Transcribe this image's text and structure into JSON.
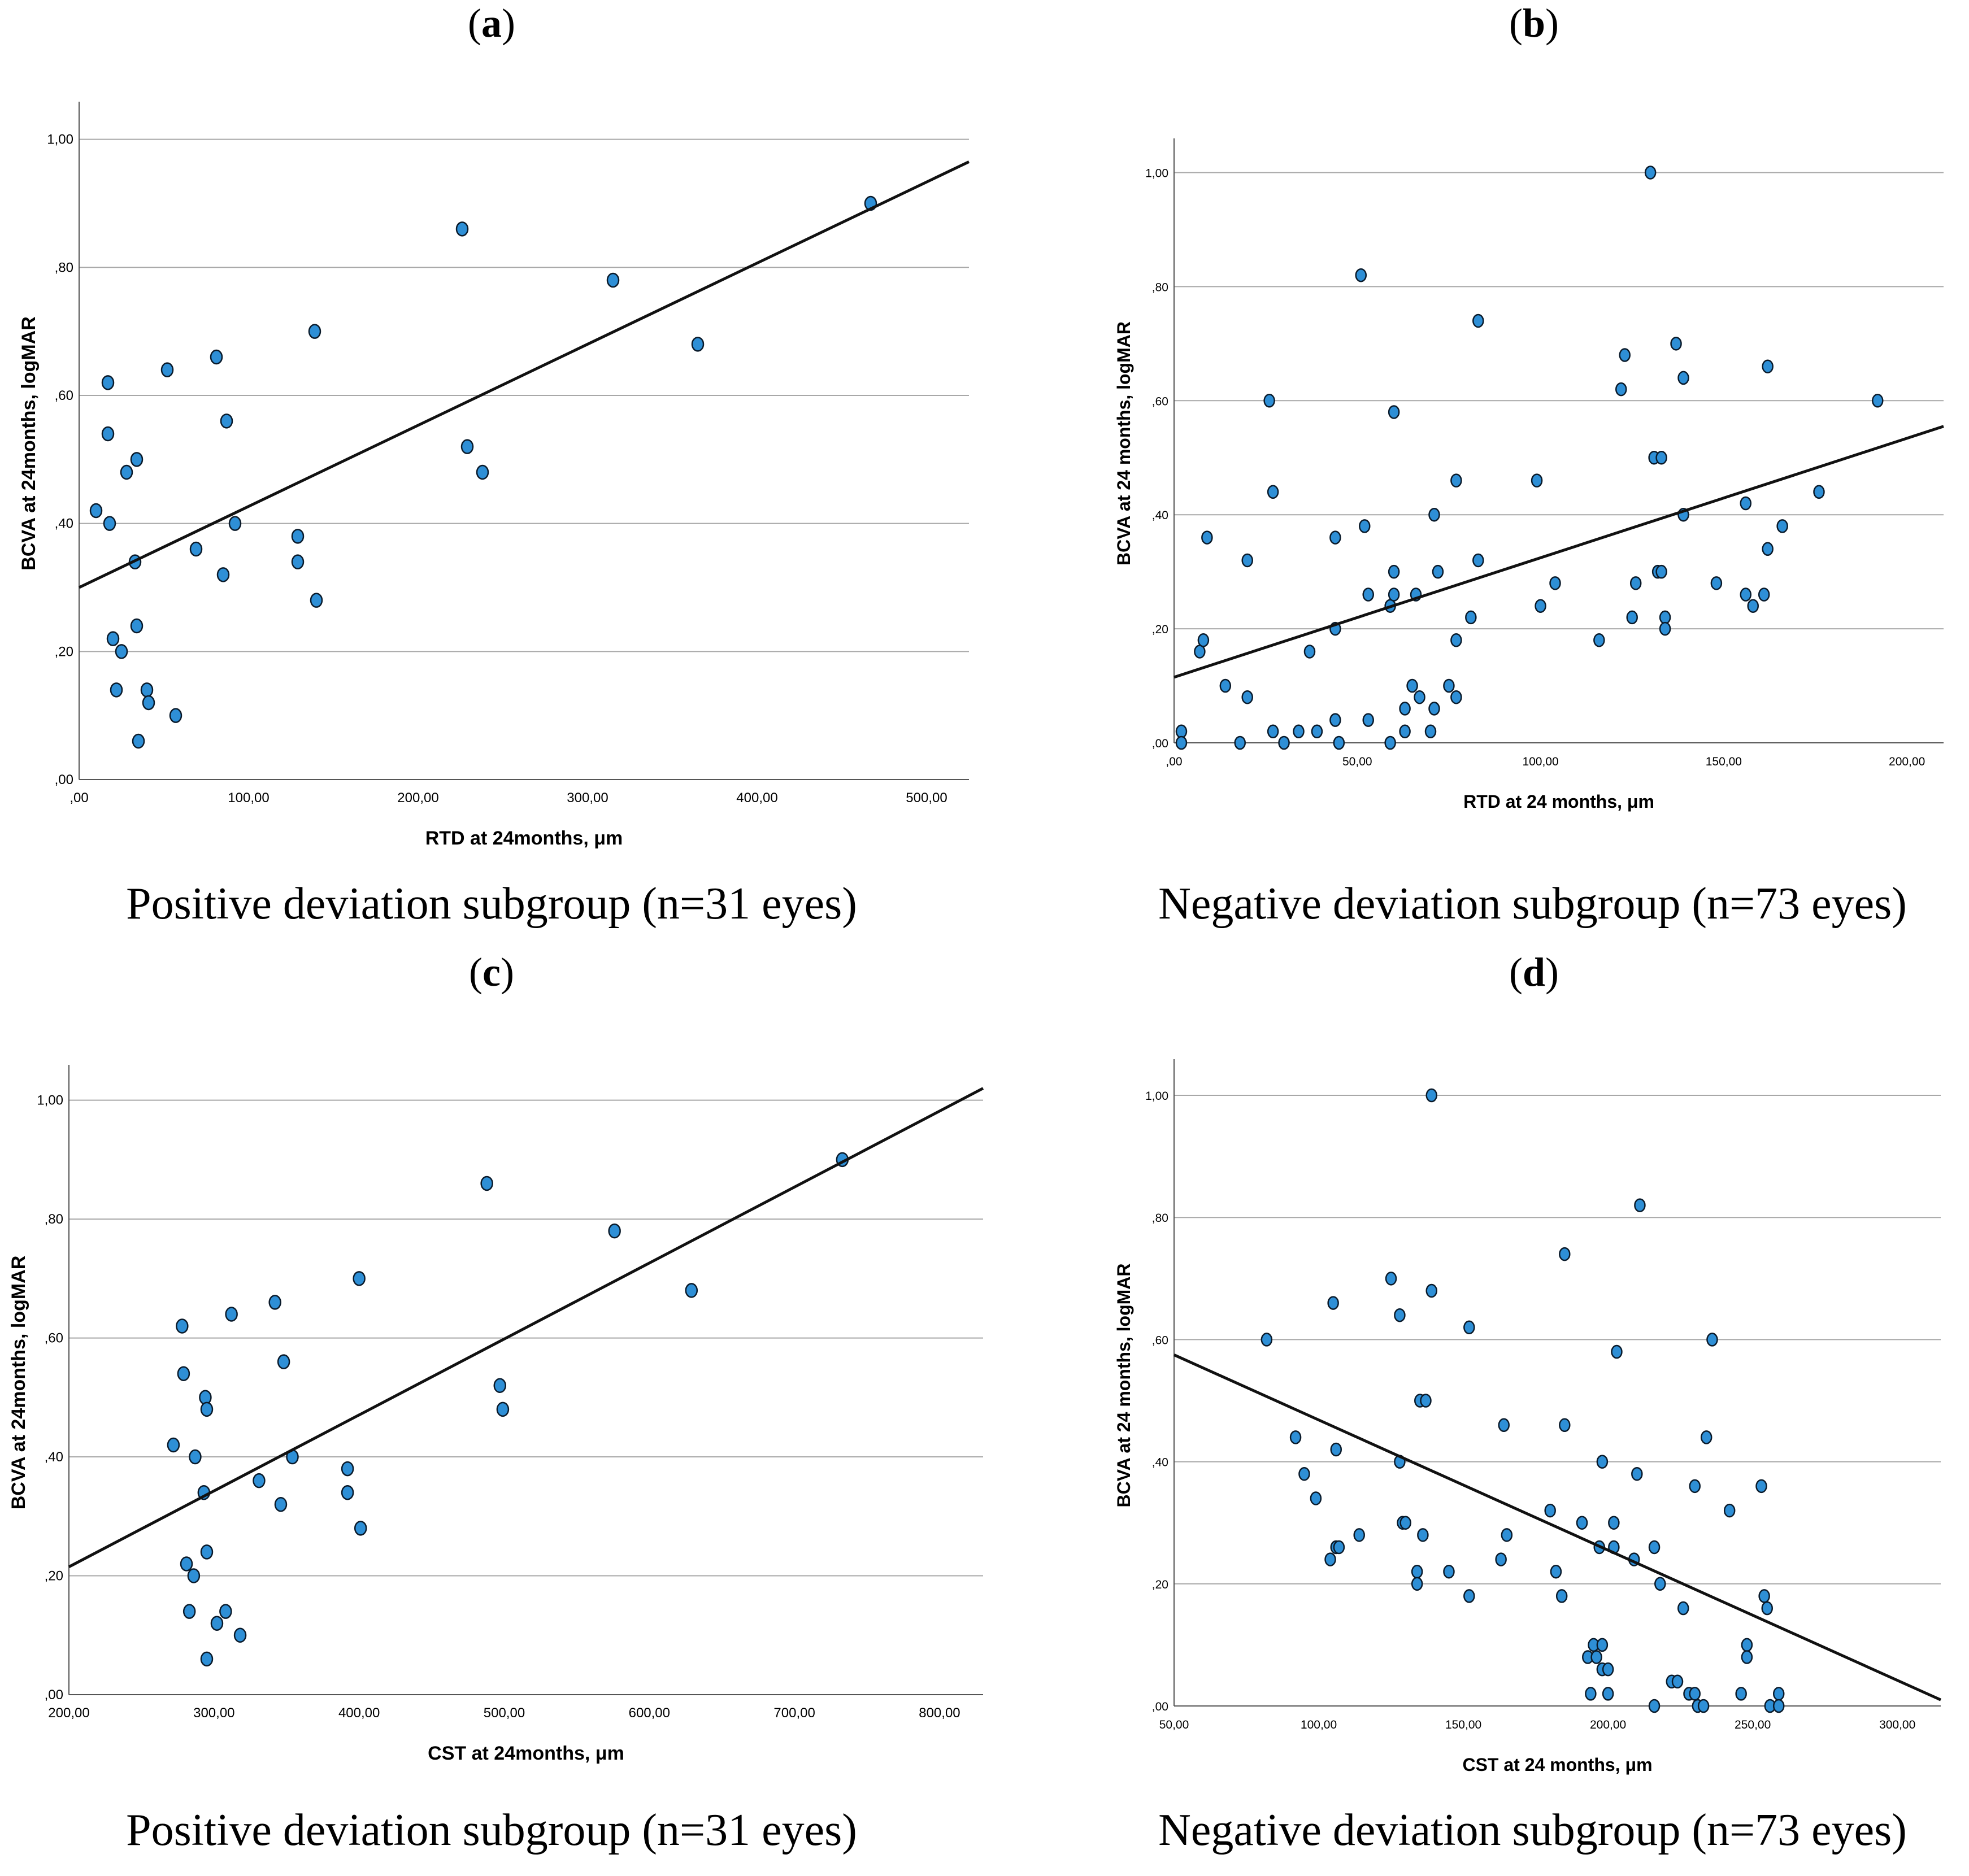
{
  "figure": {
    "colors": {
      "point": "#2e8fd6",
      "point_stroke": "#0a1a2a",
      "grid": "#a8a8a8",
      "line": "#111111",
      "axis": "#555555"
    }
  },
  "chart_data": [
    {
      "panel": "a",
      "type": "scatter",
      "caption": "Positive deviation subgroup (n=31 eyes)",
      "xlabel": "RTD at 24months, μm",
      "ylabel": "BCVA at 24months, logMAR",
      "xlim": [
        0,
        525
      ],
      "ylim": [
        0,
        1.05
      ],
      "xticks": [
        0,
        100,
        200,
        300,
        400,
        500
      ],
      "xtick_labels": [
        ",00",
        "100,00",
        "200,00",
        "300,00",
        "400,00",
        "500,00"
      ],
      "yticks": [
        0,
        0.2,
        0.4,
        0.6,
        0.8,
        1.0
      ],
      "ytick_labels": [
        ",00",
        ",20",
        ",40",
        ",60",
        ",80",
        "1,00"
      ],
      "grid": "horizontal",
      "fit_line": {
        "x": [
          0,
          525
        ],
        "y": [
          0.3,
          0.965
        ]
      },
      "points": [
        [
          10,
          0.42
        ],
        [
          17,
          0.62
        ],
        [
          17,
          0.54
        ],
        [
          18,
          0.4
        ],
        [
          20,
          0.22
        ],
        [
          22,
          0.14
        ],
        [
          25,
          0.2
        ],
        [
          28,
          0.48
        ],
        [
          33,
          0.34
        ],
        [
          34,
          0.5
        ],
        [
          34,
          0.24
        ],
        [
          35,
          0.06
        ],
        [
          40,
          0.14
        ],
        [
          41,
          0.12
        ],
        [
          52,
          0.64
        ],
        [
          57,
          0.1
        ],
        [
          69,
          0.36
        ],
        [
          81,
          0.66
        ],
        [
          85,
          0.32
        ],
        [
          87,
          0.56
        ],
        [
          92,
          0.4
        ],
        [
          129,
          0.38
        ],
        [
          129,
          0.34
        ],
        [
          139,
          0.7
        ],
        [
          140,
          0.28
        ],
        [
          226,
          0.86
        ],
        [
          229,
          0.52
        ],
        [
          238,
          0.48
        ],
        [
          315,
          0.78
        ],
        [
          365,
          0.68
        ],
        [
          467,
          0.9
        ]
      ]
    },
    {
      "panel": "b",
      "type": "scatter",
      "caption": "Negative deviation subgroup (n=73 eyes)",
      "xlabel": "RTD at 24 months, μm",
      "ylabel": "BCVA at 24 months, logMAR",
      "xlim": [
        0,
        210
      ],
      "ylim": [
        0,
        1.05
      ],
      "xticks": [
        0,
        50,
        100,
        150,
        200
      ],
      "xtick_labels": [
        ",00",
        "50,00",
        "100,00",
        "150,00",
        "200,00"
      ],
      "yticks": [
        0,
        0.2,
        0.4,
        0.6,
        0.8,
        1.0
      ],
      "ytick_labels": [
        ",00",
        ",20",
        ",40",
        ",60",
        ",80",
        "1,00"
      ],
      "grid": "horizontal",
      "fit_line": {
        "x": [
          0,
          210
        ],
        "y": [
          0.115,
          0.555
        ]
      },
      "points": [
        [
          2,
          0.02
        ],
        [
          2,
          0.0
        ],
        [
          7,
          0.16
        ],
        [
          8,
          0.18
        ],
        [
          9,
          0.36
        ],
        [
          14,
          0.1
        ],
        [
          18,
          0.0
        ],
        [
          20,
          0.08
        ],
        [
          20,
          0.32
        ],
        [
          26,
          0.6
        ],
        [
          27,
          0.44
        ],
        [
          27,
          0.02
        ],
        [
          30,
          0.0
        ],
        [
          34,
          0.02
        ],
        [
          37,
          0.16
        ],
        [
          39,
          0.02
        ],
        [
          44,
          0.36
        ],
        [
          44,
          0.2
        ],
        [
          44,
          0.04
        ],
        [
          45,
          0.0
        ],
        [
          51,
          0.82
        ],
        [
          52,
          0.38
        ],
        [
          53,
          0.04
        ],
        [
          53,
          0.26
        ],
        [
          59,
          0.0
        ],
        [
          59,
          0.24
        ],
        [
          60,
          0.3
        ],
        [
          60,
          0.26
        ],
        [
          60,
          0.58
        ],
        [
          63,
          0.06
        ],
        [
          63,
          0.02
        ],
        [
          65,
          0.1
        ],
        [
          66,
          0.26
        ],
        [
          67,
          0.08
        ],
        [
          70,
          0.02
        ],
        [
          71,
          0.06
        ],
        [
          71,
          0.4
        ],
        [
          72,
          0.3
        ],
        [
          75,
          0.1
        ],
        [
          77,
          0.08
        ],
        [
          77,
          0.18
        ],
        [
          77,
          0.46
        ],
        [
          81,
          0.22
        ],
        [
          83,
          0.32
        ],
        [
          83,
          0.74
        ],
        [
          99,
          0.46
        ],
        [
          100,
          0.24
        ],
        [
          104,
          0.28
        ],
        [
          116,
          0.18
        ],
        [
          122,
          0.62
        ],
        [
          123,
          0.68
        ],
        [
          125,
          0.22
        ],
        [
          126,
          0.28
        ],
        [
          130,
          1.0
        ],
        [
          131,
          0.5
        ],
        [
          132,
          0.3
        ],
        [
          133,
          0.3
        ],
        [
          133,
          0.5
        ],
        [
          134,
          0.22
        ],
        [
          134,
          0.2
        ],
        [
          137,
          0.7
        ],
        [
          139,
          0.64
        ],
        [
          139,
          0.4
        ],
        [
          148,
          0.28
        ],
        [
          156,
          0.42
        ],
        [
          156,
          0.26
        ],
        [
          158,
          0.24
        ],
        [
          161,
          0.26
        ],
        [
          162,
          0.34
        ],
        [
          162,
          0.66
        ],
        [
          166,
          0.38
        ],
        [
          176,
          0.44
        ],
        [
          192,
          0.6
        ]
      ]
    },
    {
      "panel": "c",
      "type": "scatter",
      "caption": "Positive deviation subgroup (n=31 eyes)",
      "xlabel": "CST at 24months, μm",
      "ylabel": "BCVA at 24months, logMAR",
      "xlim": [
        200,
        830
      ],
      "ylim": [
        0,
        1.05
      ],
      "xticks": [
        200,
        300,
        400,
        500,
        600,
        700,
        800
      ],
      "xtick_labels": [
        "200,00",
        "300,00",
        "400,00",
        "500,00",
        "600,00",
        "700,00",
        "800,00"
      ],
      "yticks": [
        0,
        0.2,
        0.4,
        0.6,
        0.8,
        1.0
      ],
      "ytick_labels": [
        ",00",
        ",20",
        ",40",
        ",60",
        ",80",
        "1,00"
      ],
      "grid": "horizontal",
      "fit_line": {
        "x": [
          200,
          830
        ],
        "y": [
          0.215,
          1.02
        ]
      },
      "points": [
        [
          272,
          0.42
        ],
        [
          278,
          0.62
        ],
        [
          279,
          0.54
        ],
        [
          281,
          0.22
        ],
        [
          283,
          0.14
        ],
        [
          286,
          0.2
        ],
        [
          287,
          0.4
        ],
        [
          293,
          0.34
        ],
        [
          294,
          0.5
        ],
        [
          295,
          0.24
        ],
        [
          295,
          0.48
        ],
        [
          295,
          0.06
        ],
        [
          302,
          0.12
        ],
        [
          308,
          0.14
        ],
        [
          312,
          0.64
        ],
        [
          318,
          0.1
        ],
        [
          331,
          0.36
        ],
        [
          342,
          0.66
        ],
        [
          346,
          0.32
        ],
        [
          348,
          0.56
        ],
        [
          354,
          0.4
        ],
        [
          392,
          0.38
        ],
        [
          392,
          0.34
        ],
        [
          400,
          0.7
        ],
        [
          401,
          0.28
        ],
        [
          488,
          0.86
        ],
        [
          497,
          0.52
        ],
        [
          499,
          0.48
        ],
        [
          576,
          0.78
        ],
        [
          629,
          0.68
        ],
        [
          733,
          0.9
        ]
      ]
    },
    {
      "panel": "d",
      "type": "scatter",
      "caption": "Negative deviation subgroup (n=73 eyes)",
      "xlabel": "CST at 24 months, μm",
      "ylabel": "BCVA at 24 months, logMAR",
      "xlim": [
        50,
        315
      ],
      "ylim": [
        0,
        1.05
      ],
      "xticks": [
        50,
        100,
        150,
        200,
        250,
        300
      ],
      "xtick_labels": [
        "50,00",
        "100,00",
        "150,00",
        "200,00",
        "250,00",
        "300,00"
      ],
      "yticks": [
        0,
        0.2,
        0.4,
        0.6,
        0.8,
        1.0
      ],
      "ytick_labels": [
        ",00",
        ",20",
        ",40",
        ",60",
        ",80",
        "1,00"
      ],
      "grid": "horizontal",
      "fit_line": {
        "x": [
          50,
          315
        ],
        "y": [
          0.575,
          0.01
        ]
      },
      "points": [
        [
          82,
          0.6
        ],
        [
          92,
          0.44
        ],
        [
          95,
          0.38
        ],
        [
          99,
          0.34
        ],
        [
          104,
          0.24
        ],
        [
          105,
          0.66
        ],
        [
          106,
          0.42
        ],
        [
          106,
          0.26
        ],
        [
          107,
          0.26
        ],
        [
          114,
          0.28
        ],
        [
          125,
          0.7
        ],
        [
          128,
          0.64
        ],
        [
          128,
          0.4
        ],
        [
          129,
          0.3
        ],
        [
          130,
          0.3
        ],
        [
          134,
          0.22
        ],
        [
          134,
          0.2
        ],
        [
          135,
          0.5
        ],
        [
          136,
          0.28
        ],
        [
          137,
          0.5
        ],
        [
          139,
          1.0
        ],
        [
          139,
          0.68
        ],
        [
          145,
          0.22
        ],
        [
          152,
          0.62
        ],
        [
          152,
          0.18
        ],
        [
          163,
          0.24
        ],
        [
          164,
          0.46
        ],
        [
          165,
          0.28
        ],
        [
          180,
          0.32
        ],
        [
          182,
          0.22
        ],
        [
          184,
          0.18
        ],
        [
          185,
          0.74
        ],
        [
          185,
          0.46
        ],
        [
          191,
          0.3
        ],
        [
          193,
          0.08
        ],
        [
          194,
          0.02
        ],
        [
          195,
          0.1
        ],
        [
          196,
          0.08
        ],
        [
          197,
          0.26
        ],
        [
          198,
          0.4
        ],
        [
          198,
          0.1
        ],
        [
          198,
          0.06
        ],
        [
          200,
          0.02
        ],
        [
          200,
          0.06
        ],
        [
          202,
          0.3
        ],
        [
          202,
          0.26
        ],
        [
          203,
          0.58
        ],
        [
          209,
          0.24
        ],
        [
          210,
          0.38
        ],
        [
          211,
          0.82
        ],
        [
          216,
          0.26
        ],
        [
          216,
          0.0
        ],
        [
          218,
          0.2
        ],
        [
          222,
          0.04
        ],
        [
          224,
          0.04
        ],
        [
          226,
          0.16
        ],
        [
          228,
          0.02
        ],
        [
          230,
          0.02
        ],
        [
          231,
          0.0
        ],
        [
          230,
          0.36
        ],
        [
          233,
          0.0
        ],
        [
          234,
          0.44
        ],
        [
          236,
          0.6
        ],
        [
          242,
          0.32
        ],
        [
          246,
          0.02
        ],
        [
          248,
          0.1
        ],
        [
          248,
          0.08
        ],
        [
          253,
          0.36
        ],
        [
          254,
          0.18
        ],
        [
          255,
          0.16
        ],
        [
          256,
          0.0
        ],
        [
          259,
          0.02
        ],
        [
          259,
          0.0
        ]
      ]
    }
  ]
}
